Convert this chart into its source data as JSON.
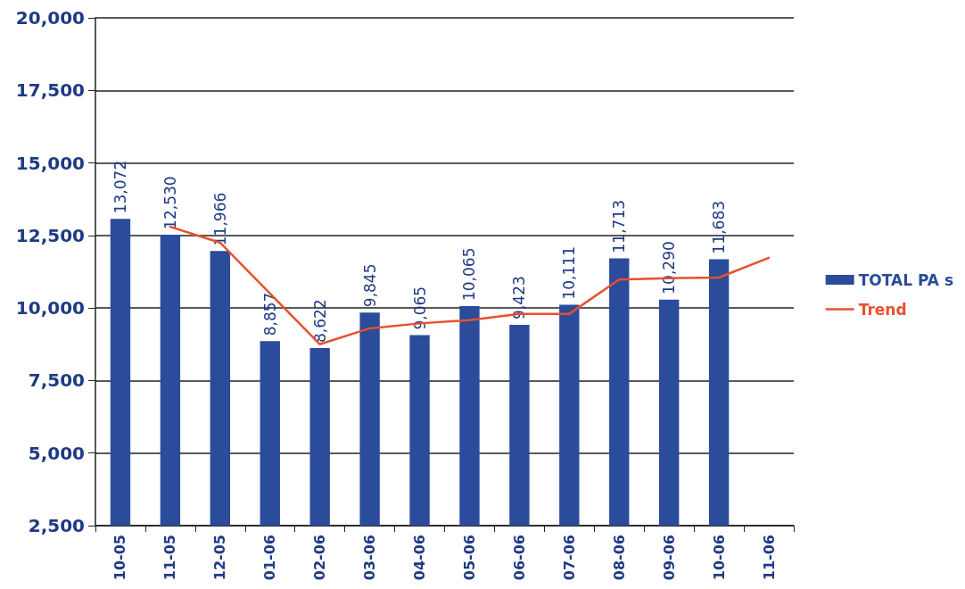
{
  "chart_data": {
    "type": "bar",
    "categories": [
      "10-05",
      "11-05",
      "12-05",
      "01-06",
      "02-06",
      "03-06",
      "04-06",
      "05-06",
      "06-06",
      "07-06",
      "08-06",
      "09-06",
      "10-06",
      "11-06"
    ],
    "series": [
      {
        "name": "TOTAL PA s",
        "color": "#2b4b9b",
        "values": [
          13072,
          12530,
          11966,
          8857,
          8622,
          9845,
          9065,
          10065,
          9423,
          10111,
          11713,
          10290,
          11683,
          null
        ],
        "value_labels": [
          "13,072",
          "12,530",
          "11,966",
          "8,857",
          "8,622",
          "9,845",
          "9,065",
          "10,065",
          "9,423",
          "10,111",
          "11,713",
          "10,290",
          "11,683",
          null
        ]
      },
      {
        "name": "Trend",
        "type": "line",
        "color": "#e8502e",
        "values": [
          null,
          12800,
          12250,
          10500,
          8750,
          9300,
          9470,
          9580,
          9800,
          9800,
          10980,
          11030,
          11050,
          11730
        ]
      }
    ],
    "ylim": [
      2500,
      20000
    ],
    "yticks": [
      {
        "value": 2500,
        "label": "2,500"
      },
      {
        "value": 5000,
        "label": "5,000"
      },
      {
        "value": 7500,
        "label": "7,500"
      },
      {
        "value": 10000,
        "label": "10,000"
      },
      {
        "value": 12500,
        "label": "12,500"
      },
      {
        "value": 15000,
        "label": "15,000"
      },
      {
        "value": 17500,
        "label": "17,500"
      },
      {
        "value": 20000,
        "label": "20,000"
      }
    ],
    "grid": "y",
    "legend": "right",
    "marker": "none"
  }
}
